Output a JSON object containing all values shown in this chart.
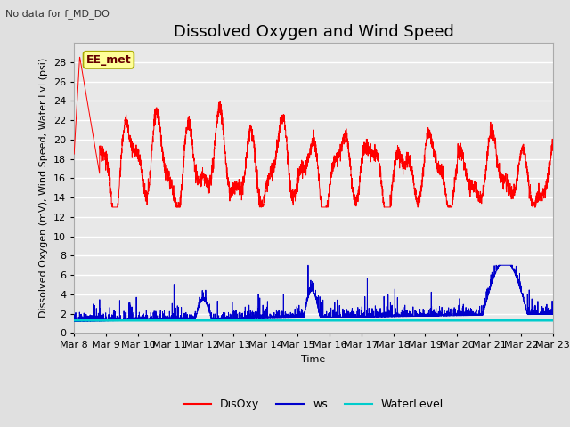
{
  "title": "Dissolved Oxygen and Wind Speed",
  "subtitle": "No data for f_MD_DO",
  "xlabel": "Time",
  "ylabel": "Dissolved Oxygen (mV), Wind Speed, Water Lvl (psi)",
  "annotation": "EE_met",
  "ylim": [
    0,
    30
  ],
  "yticks": [
    0,
    2,
    4,
    6,
    8,
    10,
    12,
    14,
    16,
    18,
    20,
    22,
    24,
    26,
    28
  ],
  "xtick_labels": [
    "Mar 8",
    "Mar 9",
    "Mar 10",
    "Mar 11",
    "Mar 12",
    "Mar 13",
    "Mar 14",
    "Mar 15",
    "Mar 16",
    "Mar 17",
    "Mar 18",
    "Mar 19",
    "Mar 20",
    "Mar 21",
    "Mar 22",
    "Mar 23"
  ],
  "disoxy_color": "#FF0000",
  "ws_color": "#0000CC",
  "waterlevel_color": "#00CCCC",
  "legend_labels": [
    "DisOxy",
    "ws",
    "WaterLevel"
  ],
  "fig_bg_color": "#E0E0E0",
  "plot_bg_color": "#E8E8E8",
  "grid_color": "#FFFFFF",
  "title_fontsize": 13,
  "label_fontsize": 8,
  "tick_fontsize": 8,
  "waterlevel_value": 1.3,
  "num_points": 3600
}
